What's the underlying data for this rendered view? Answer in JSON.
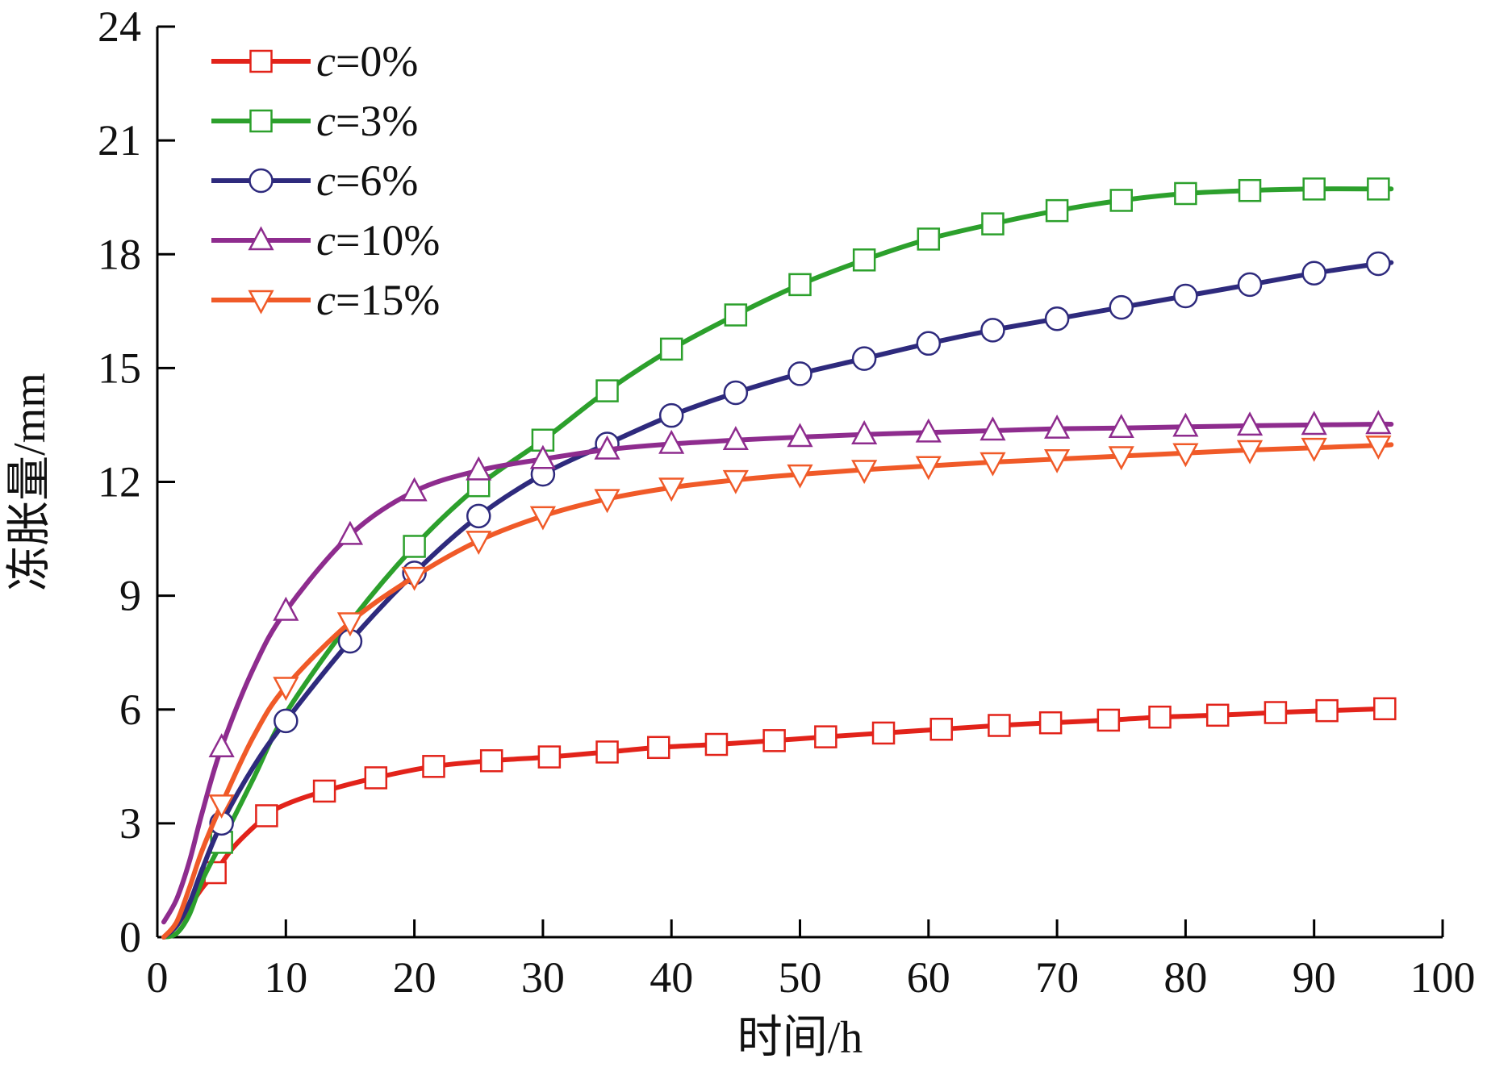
{
  "chart_data": {
    "type": "line",
    "title": "",
    "xlabel": "时间/h",
    "ylabel": "冻胀量/mm",
    "xlim": [
      0,
      100
    ],
    "ylim": [
      0,
      24
    ],
    "xticks": [
      0,
      10,
      20,
      30,
      40,
      50,
      60,
      70,
      80,
      90,
      100
    ],
    "yticks": [
      0,
      3,
      6,
      9,
      12,
      15,
      18,
      21,
      24
    ],
    "grid": false,
    "legend_position": "top-left",
    "series": [
      {
        "name": "c=0%",
        "name_var": "c",
        "name_rest": "=0%",
        "color": "#e2231a",
        "marker": "square",
        "x": [
          0.5,
          1.5,
          2.5,
          3.5,
          4.5,
          6,
          8.5,
          10,
          13,
          17,
          21.5,
          26,
          30.5,
          35,
          39,
          43.5,
          48,
          52,
          56.5,
          61,
          65.5,
          69.5,
          74,
          78,
          82.5,
          87,
          91,
          95.5
        ],
        "y": [
          0.0,
          0.3,
          0.8,
          1.3,
          1.7,
          2.4,
          3.2,
          3.5,
          3.85,
          4.2,
          4.5,
          4.65,
          4.75,
          4.88,
          5.0,
          5.08,
          5.18,
          5.28,
          5.38,
          5.48,
          5.58,
          5.65,
          5.72,
          5.8,
          5.85,
          5.92,
          5.97,
          6.02
        ],
        "marker_x": [
          4.5,
          8.5,
          13,
          17,
          21.5,
          26,
          30.5,
          35,
          39,
          43.5,
          48,
          52,
          56.5,
          61,
          65.5,
          69.5,
          74,
          78,
          82.5,
          87,
          91,
          95.5
        ]
      },
      {
        "name": "c=3%",
        "name_var": "c",
        "name_rest": "=3%",
        "color": "#2ca02c",
        "marker": "square",
        "x": [
          0.5,
          1.5,
          2.5,
          3.5,
          5,
          7.5,
          10,
          15,
          20,
          25,
          30,
          35,
          40,
          45,
          50,
          55,
          60,
          65,
          70,
          75,
          80,
          85,
          90,
          95,
          96
        ],
        "y": [
          0.0,
          0.1,
          0.6,
          1.5,
          2.5,
          4.2,
          5.9,
          8.3,
          10.3,
          11.9,
          13.1,
          14.4,
          15.5,
          16.4,
          17.2,
          17.85,
          18.4,
          18.8,
          19.15,
          19.42,
          19.6,
          19.68,
          19.72,
          19.72,
          19.72
        ],
        "marker_x": [
          5,
          20,
          25,
          30,
          35,
          40,
          45,
          50,
          55,
          60,
          65,
          70,
          75,
          80,
          85,
          90,
          95
        ]
      },
      {
        "name": "c=6%",
        "name_var": "c",
        "name_rest": "=6%",
        "color": "#2e2a7d",
        "marker": "circle",
        "x": [
          0.5,
          1.5,
          2.5,
          3.5,
          5,
          7.5,
          10,
          15,
          20,
          25,
          30,
          35,
          40,
          45,
          50,
          55,
          60,
          65,
          70,
          75,
          80,
          85,
          90,
          95,
          96
        ],
        "y": [
          0.0,
          0.3,
          0.9,
          1.8,
          3.0,
          4.5,
          5.7,
          7.8,
          9.6,
          11.1,
          12.2,
          13.0,
          13.75,
          14.35,
          14.85,
          15.25,
          15.65,
          16.0,
          16.3,
          16.6,
          16.9,
          17.2,
          17.5,
          17.75,
          17.78
        ],
        "marker_x": [
          5,
          10,
          15,
          20,
          25,
          30,
          35,
          40,
          45,
          50,
          55,
          60,
          65,
          70,
          75,
          80,
          85,
          90,
          95
        ]
      },
      {
        "name": "c=10%",
        "name_var": "c",
        "name_rest": "=10%",
        "color": "#8e2c8e",
        "marker": "triangle-up",
        "x": [
          0.5,
          1.5,
          2.5,
          3.5,
          5,
          7.5,
          10,
          15,
          20,
          25,
          30,
          35,
          40,
          45,
          50,
          55,
          60,
          65,
          70,
          75,
          80,
          85,
          90,
          95,
          96
        ],
        "y": [
          0.4,
          1.0,
          2.0,
          3.3,
          5.0,
          7.1,
          8.6,
          10.6,
          11.75,
          12.3,
          12.6,
          12.85,
          13.0,
          13.1,
          13.18,
          13.25,
          13.3,
          13.35,
          13.4,
          13.42,
          13.45,
          13.48,
          13.5,
          13.52,
          13.52
        ],
        "marker_x": [
          5,
          10,
          15,
          20,
          25,
          30,
          35,
          40,
          45,
          50,
          55,
          60,
          65,
          70,
          75,
          80,
          85,
          90,
          95
        ]
      },
      {
        "name": "c=15%",
        "name_var": "c",
        "name_rest": "=15%",
        "color": "#f05a28",
        "marker": "triangle-down",
        "x": [
          0.5,
          1.5,
          2.5,
          3.5,
          5,
          7.5,
          10,
          15,
          20,
          25,
          30,
          35,
          40,
          45,
          50,
          55,
          60,
          65,
          70,
          75,
          80,
          85,
          90,
          95,
          96
        ],
        "y": [
          0.0,
          0.4,
          1.3,
          2.3,
          3.5,
          5.3,
          6.6,
          8.3,
          9.5,
          10.45,
          11.1,
          11.55,
          11.85,
          12.05,
          12.2,
          12.32,
          12.42,
          12.52,
          12.6,
          12.68,
          12.76,
          12.84,
          12.9,
          12.96,
          12.98
        ],
        "marker_x": [
          5,
          10,
          15,
          20,
          25,
          30,
          35,
          40,
          45,
          50,
          55,
          60,
          65,
          70,
          75,
          80,
          85,
          90,
          95
        ]
      }
    ]
  }
}
